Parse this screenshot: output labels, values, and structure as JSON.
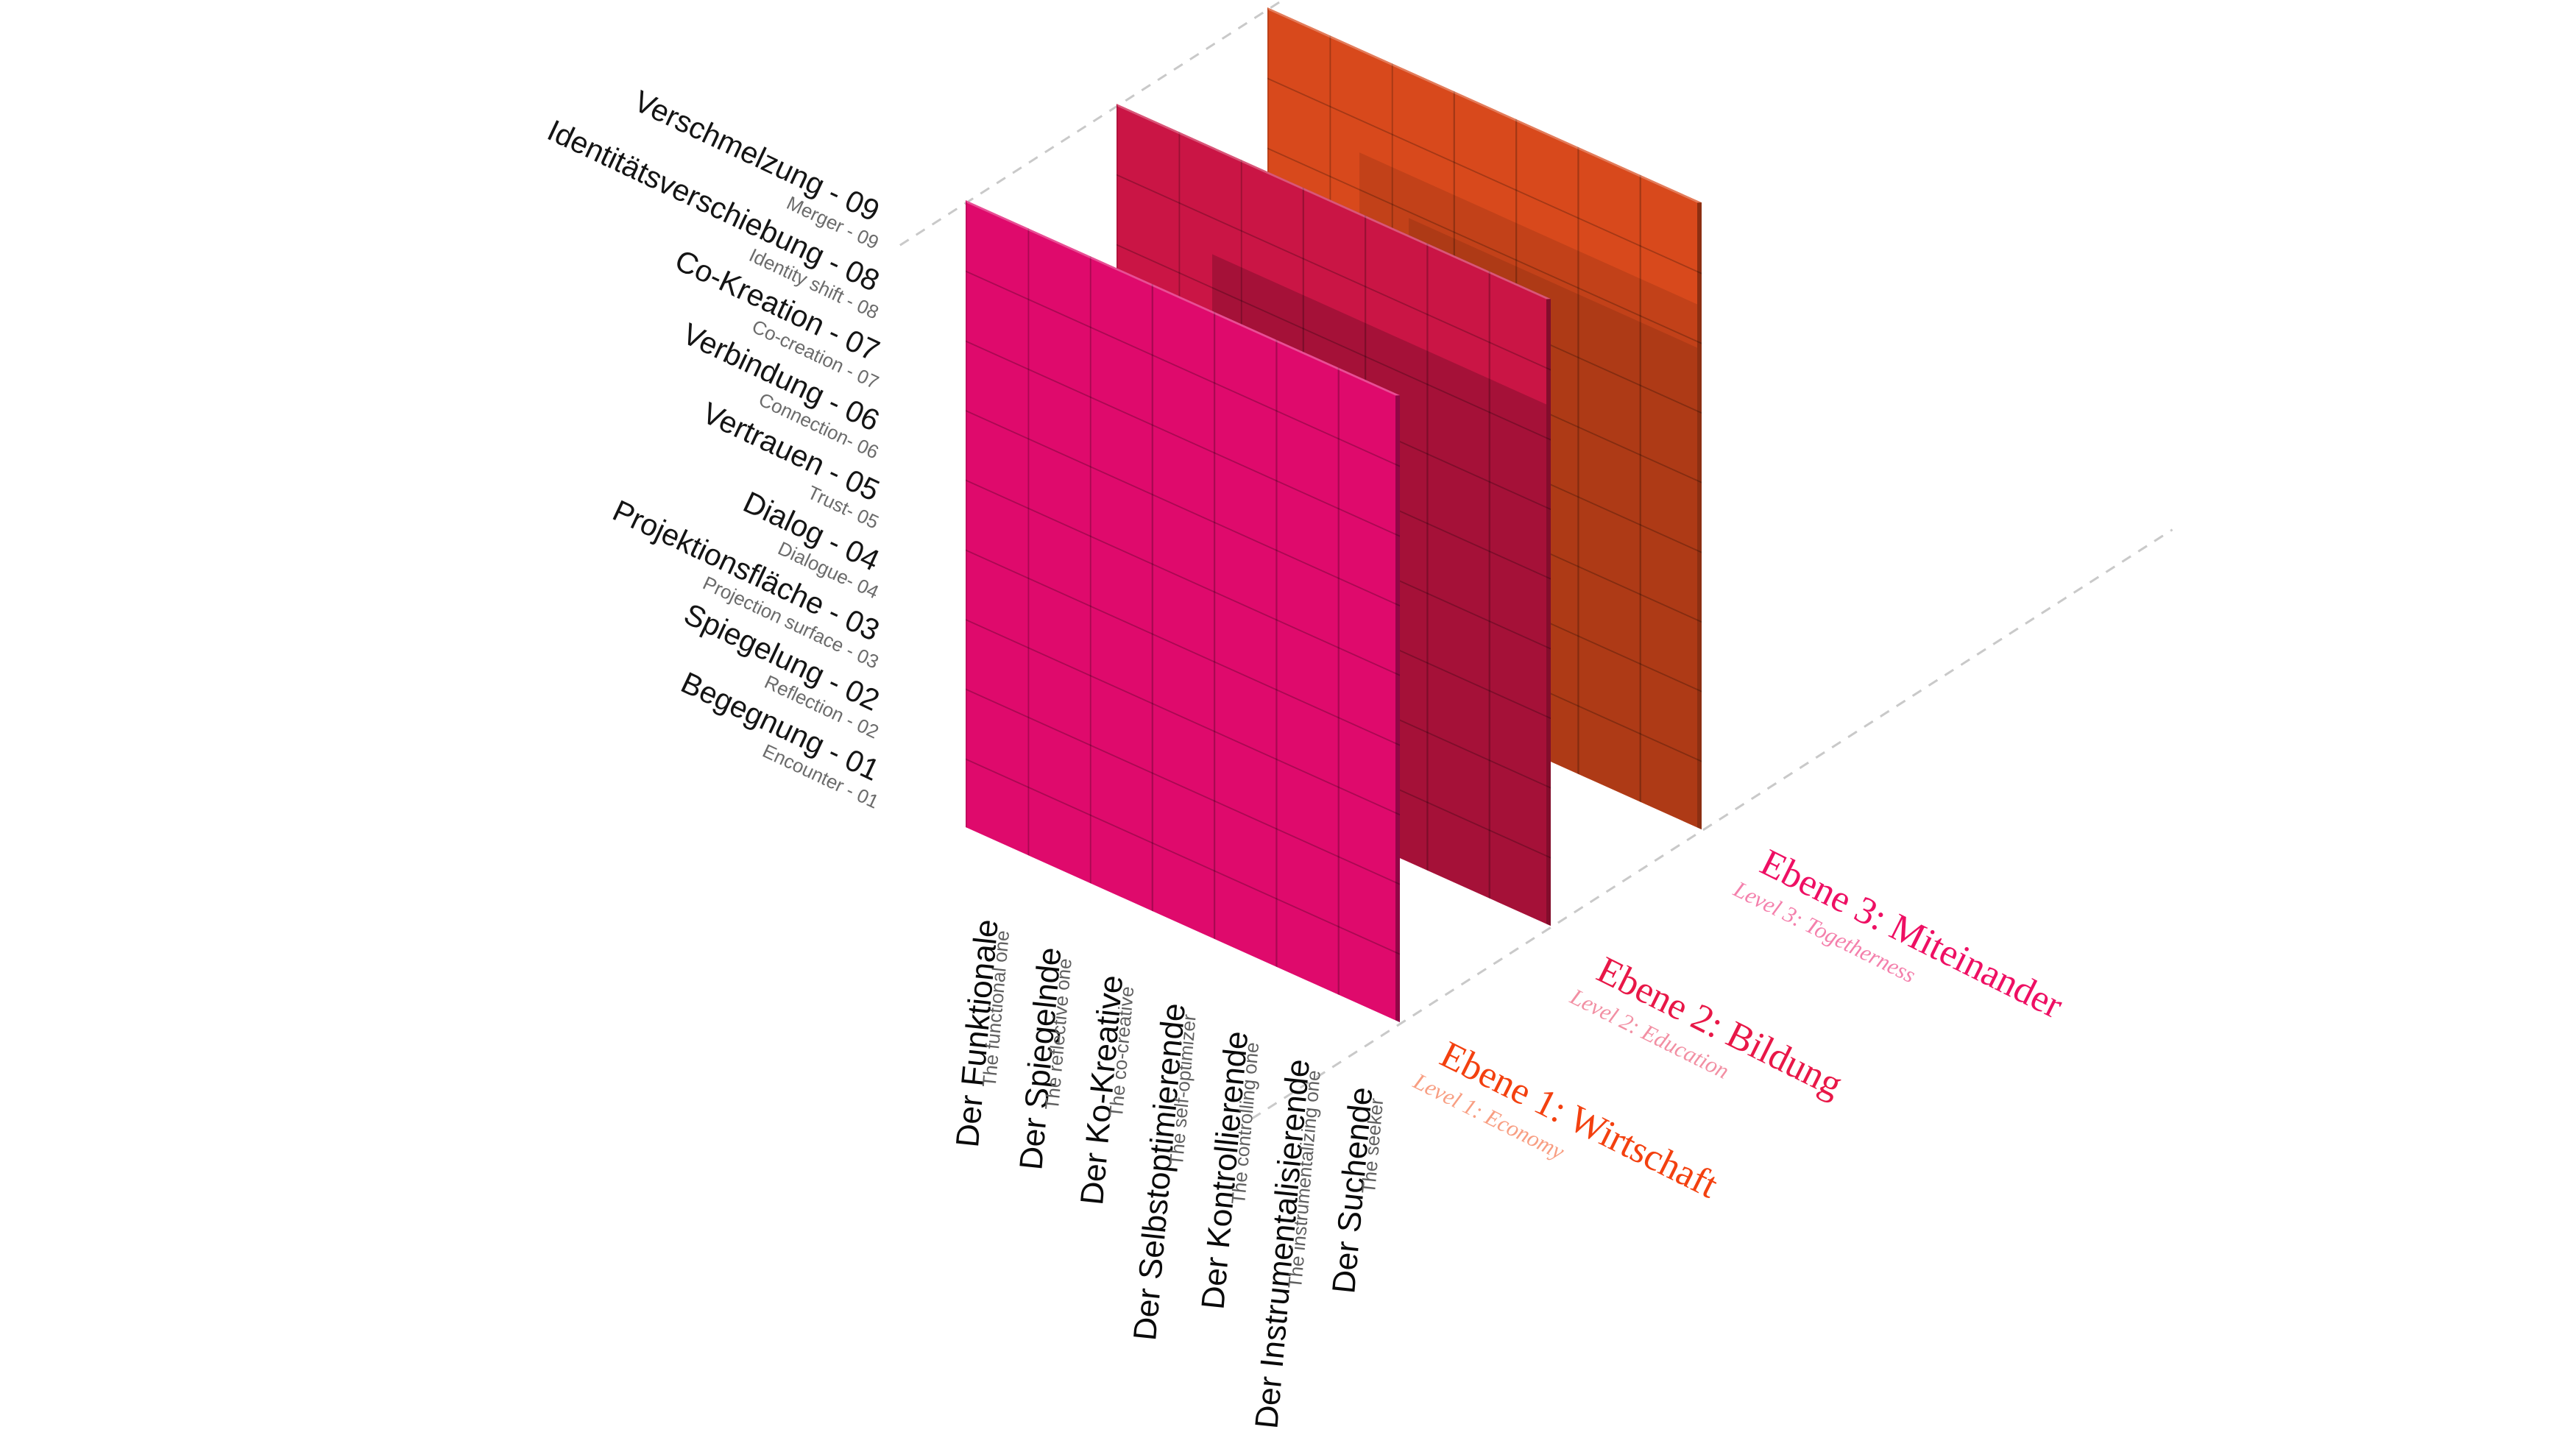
{
  "diagram": {
    "type": "stacked-3d-grid-planes",
    "grid": {
      "columns": 7,
      "rows": 9
    },
    "background_color": "#ffffff",
    "dashed_line_color": "#c9c9c9"
  },
  "rows": [
    {
      "de": "Verschmelzung - 09",
      "en": "Merger - 09"
    },
    {
      "de": "Identitätsverschiebung - 08",
      "en": "Identity shift - 08"
    },
    {
      "de": "Co-Kreation - 07",
      "en": "Co-creation - 07"
    },
    {
      "de": "Verbindung - 06",
      "en": "Connection- 06"
    },
    {
      "de": "Vertrauen - 05",
      "en": "Trust- 05"
    },
    {
      "de": "Dialog - 04",
      "en": "Dialogue- 04"
    },
    {
      "de": "Projektionsfläche - 03",
      "en": "Projection surface - 03"
    },
    {
      "de": "Spiegelung - 02",
      "en": "Reflection - 02"
    },
    {
      "de": "Begegnung - 01",
      "en": "Encounter - 01"
    }
  ],
  "columns": [
    {
      "de": "Der Funktionale",
      "en": "The functional one"
    },
    {
      "de": "Der Spiegelnde",
      "en": "The reflective one"
    },
    {
      "de": "Der Ko-Kreative",
      "en": "The co-creative"
    },
    {
      "de": "Der Selbstoptimierende",
      "en": "The self-optimizer"
    },
    {
      "de": "Der Kontrollierende",
      "en": "The controlling one"
    },
    {
      "de": "Der Instrumentalisierende",
      "en": "The instrumentalizing one"
    },
    {
      "de": "Der Suchende",
      "en": "The seeker"
    }
  ],
  "levels": [
    {
      "id": 1,
      "de": "Ebene 1: Wirtschaft",
      "en": "Level 1: Economy",
      "plane_color": "#D8491C",
      "label_color": "#F3400F",
      "sub_label_color": "#F89E82"
    },
    {
      "id": 2,
      "de": "Ebene 2: Bildung",
      "en": "Level 2: Education",
      "plane_color": "#CA1545",
      "label_color": "#E81747",
      "sub_label_color": "#F28FA3"
    },
    {
      "id": 3,
      "de": "Ebene 3: Miteinander",
      "en": "Level 3: Togetherness",
      "plane_color": "#DF0A6C",
      "label_color": "#EE0F63",
      "sub_label_color": "#F480AC"
    }
  ]
}
